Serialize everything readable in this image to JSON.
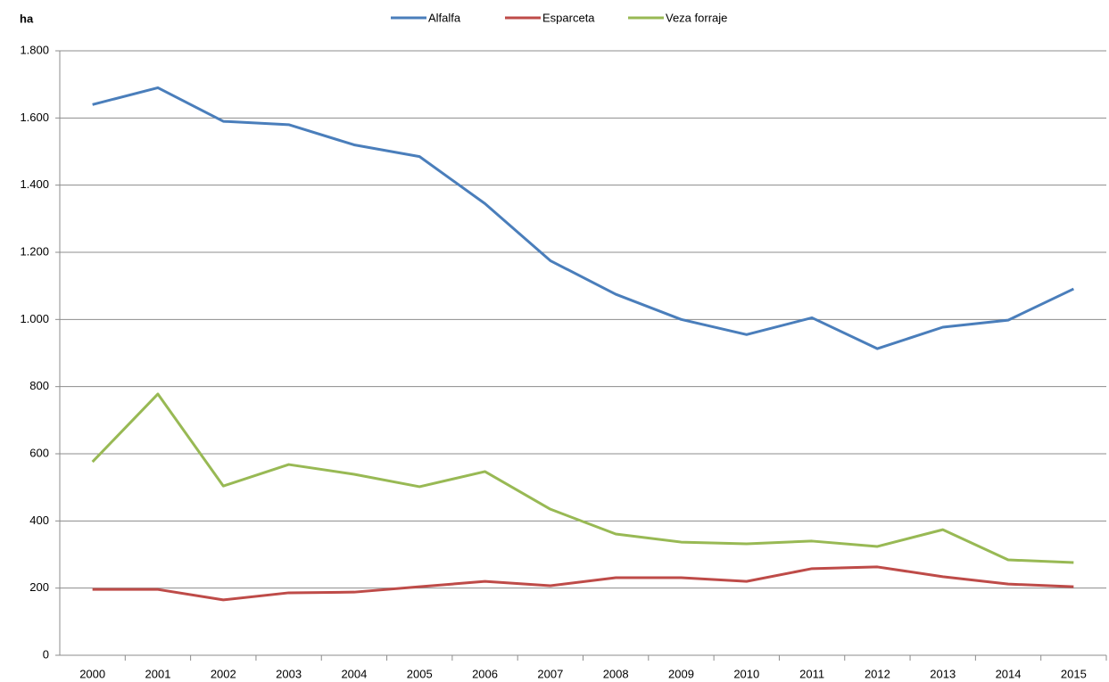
{
  "chart_data": {
    "type": "line",
    "ylabel": "ha",
    "categories": [
      "2000",
      "2001",
      "2002",
      "2003",
      "2004",
      "2005",
      "2006",
      "2007",
      "2008",
      "2009",
      "2010",
      "2011",
      "2012",
      "2013",
      "2014",
      "2015"
    ],
    "series": [
      {
        "name": "Alfalfa",
        "color": "#4a7ebb",
        "values": [
          1640,
          1690,
          1590,
          1580,
          1520,
          1485,
          1345,
          1175,
          1075,
          1000,
          955,
          1005,
          913,
          977,
          998,
          1091
        ]
      },
      {
        "name": "Esparceta",
        "color": "#be4b48",
        "values": [
          196,
          196,
          165,
          186,
          188,
          204,
          220,
          207,
          231,
          231,
          220,
          258,
          263,
          234,
          212,
          204
        ]
      },
      {
        "name": "Veza forraje",
        "color": "#98b954",
        "values": [
          576,
          778,
          504,
          568,
          539,
          502,
          547,
          435,
          361,
          337,
          332,
          340,
          324,
          374,
          284,
          276
        ]
      }
    ],
    "ylim": [
      0,
      1800
    ],
    "yticks": [
      0,
      200,
      400,
      600,
      800,
      {
        "value": 1000,
        "label": "1.000"
      },
      {
        "value": 1200,
        "label": "1.200"
      },
      {
        "value": 1400,
        "label": "1.400"
      },
      {
        "value": 1600,
        "label": "1.600"
      },
      {
        "value": 1800,
        "label": "1.800"
      }
    ],
    "grid": true,
    "legend": "top"
  }
}
